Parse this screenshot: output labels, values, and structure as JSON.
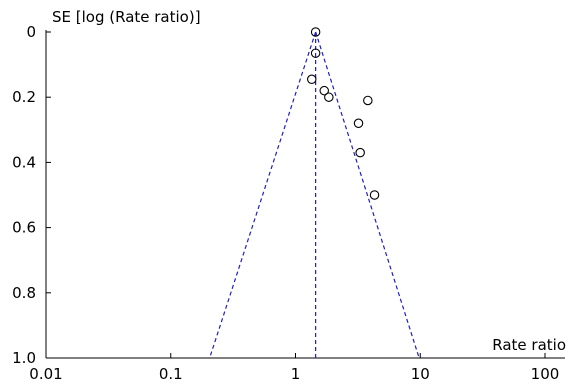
{
  "chart_data": {
    "type": "scatter",
    "ylabel": "SE [log (Rate ratio)]",
    "xlabel": "Rate ratio",
    "x_scale": "log",
    "xlim": [
      0.01,
      100
    ],
    "ylim": [
      0,
      1.0
    ],
    "y_inverted": true,
    "x_ticks": [
      0.01,
      0.1,
      1,
      10,
      100
    ],
    "x_tick_labels": [
      "0.01",
      "0.1",
      "1",
      "10",
      "100"
    ],
    "y_ticks": [
      0,
      0.2,
      0.4,
      0.6,
      0.8,
      1.0
    ],
    "y_tick_labels": [
      "0",
      "0.2",
      "0.4",
      "0.6",
      "0.8",
      "1.0"
    ],
    "grid": false,
    "pooled_estimate": 1.45,
    "funnel_left_at_max_se": 0.205,
    "funnel_right_at_max_se": 9.8,
    "points": [
      {
        "x": 1.45,
        "y": 0.0
      },
      {
        "x": 1.45,
        "y": 0.065
      },
      {
        "x": 1.35,
        "y": 0.145
      },
      {
        "x": 1.7,
        "y": 0.18
      },
      {
        "x": 1.85,
        "y": 0.2
      },
      {
        "x": 3.8,
        "y": 0.21
      },
      {
        "x": 3.2,
        "y": 0.28
      },
      {
        "x": 3.3,
        "y": 0.37
      },
      {
        "x": 4.3,
        "y": 0.5
      }
    ],
    "colors": {
      "funnel": "#1f1fbf",
      "points": "#000000",
      "axes": "#000000"
    }
  }
}
